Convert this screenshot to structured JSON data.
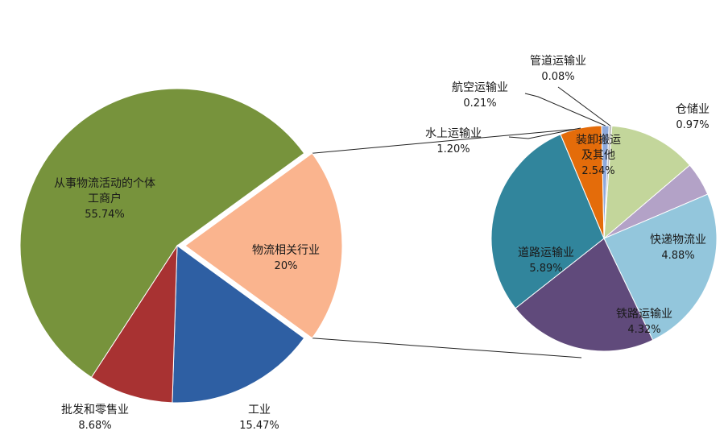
{
  "chart_data": [
    {
      "type": "pie",
      "slices": [
        {
          "label": [
            "从事物流活动的个体",
            "工商户"
          ],
          "value_label": "55.74%",
          "value": 55.74,
          "color": "#77933C"
        },
        {
          "label": [
            "物流相关行业"
          ],
          "value_label": "20%",
          "value": 20,
          "color": "#FAB48E",
          "exploded": true
        },
        {
          "label": [
            "工业"
          ],
          "value_label": "15.47%",
          "value": 15.47,
          "color": "#2E5FA3"
        },
        {
          "label": [
            "批发和零售业"
          ],
          "value_label": "8.68%",
          "value": 8.68,
          "color": "#A83232"
        }
      ]
    },
    {
      "type": "pie",
      "breakdown_of": "物流相关行业",
      "slices": [
        {
          "label": [
            "装卸搬运",
            "及其他"
          ],
          "value_label": "2.54%",
          "value": 2.54,
          "color": "#C3D69B"
        },
        {
          "label": [
            "仓储业"
          ],
          "value_label": "0.97%",
          "value": 0.97,
          "color": "#B3A2C7"
        },
        {
          "label": [
            "快递物流业"
          ],
          "value_label": "4.88%",
          "value": 4.88,
          "color": "#93C6DC"
        },
        {
          "label": [
            "铁路运输业"
          ],
          "value_label": "4.32%",
          "value": 4.32,
          "color": "#604A7B"
        },
        {
          "label": [
            "道路运输业"
          ],
          "value_label": "5.89%",
          "value": 5.89,
          "color": "#31859C"
        },
        {
          "label": [
            "水上运输业"
          ],
          "value_label": "1.20%",
          "value": 1.2,
          "color": "#E46C0A"
        },
        {
          "label": [
            "航空运输业"
          ],
          "value_label": "0.21%",
          "value": 0.21,
          "color": "#8EA9DB"
        },
        {
          "label": [
            "管道运输业"
          ],
          "value_label": "0.08%",
          "value": 0.08,
          "color": "#BFBFBF"
        }
      ]
    }
  ]
}
